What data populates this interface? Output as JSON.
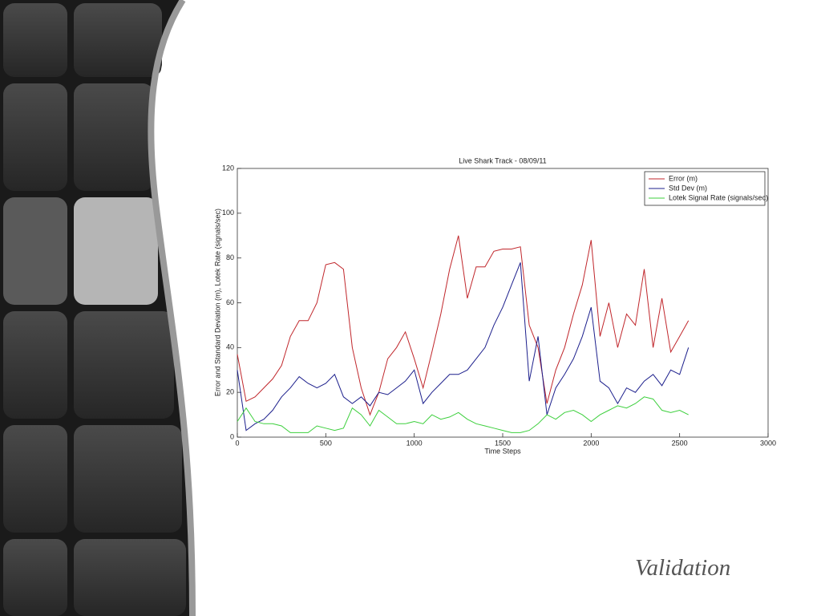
{
  "chart_data": {
    "type": "line",
    "title": "Live Shark Track - 08/09/11",
    "xlabel": "Time Steps",
    "ylabel": "Error and Standard Deviation (m), Lotek Rate (signals/sec)",
    "x": [
      0,
      50,
      100,
      150,
      200,
      250,
      300,
      350,
      400,
      450,
      500,
      550,
      600,
      650,
      700,
      750,
      800,
      850,
      900,
      950,
      1000,
      1050,
      1100,
      1150,
      1200,
      1250,
      1300,
      1350,
      1400,
      1450,
      1500,
      1550,
      1600,
      1650,
      1700,
      1750,
      1800,
      1850,
      1900,
      1950,
      2000,
      2050,
      2100,
      2150,
      2200,
      2250,
      2300,
      2350,
      2400,
      2450,
      2500,
      2550
    ],
    "series": [
      {
        "name": "Error (m)",
        "color": "#c0262b",
        "values": [
          37,
          16,
          18,
          22,
          26,
          32,
          45,
          52,
          52,
          60,
          77,
          78,
          75,
          40,
          22,
          10,
          20,
          35,
          40,
          47,
          35,
          22,
          38,
          55,
          75,
          90,
          62,
          76,
          76,
          83,
          84,
          84,
          85,
          50,
          40,
          15,
          30,
          40,
          55,
          68,
          88,
          45,
          60,
          40,
          55,
          50,
          75,
          40,
          62,
          38,
          45,
          52
        ]
      },
      {
        "name": "Std Dev (m)",
        "color": "#1c1f8c",
        "values": [
          30,
          3,
          6,
          8,
          12,
          18,
          22,
          27,
          24,
          22,
          24,
          28,
          18,
          15,
          18,
          14,
          20,
          19,
          22,
          25,
          30,
          15,
          20,
          24,
          28,
          28,
          30,
          35,
          40,
          50,
          58,
          68,
          78,
          25,
          45,
          10,
          22,
          28,
          35,
          45,
          58,
          25,
          22,
          15,
          22,
          20,
          25,
          28,
          23,
          30,
          28,
          40
        ]
      },
      {
        "name": "Lotek Signal Rate (signals/sec)",
        "color": "#3ccf3c",
        "values": [
          7,
          13,
          7,
          6,
          6,
          5,
          2,
          2,
          2,
          5,
          4,
          3,
          4,
          13,
          10,
          5,
          12,
          9,
          6,
          6,
          7,
          6,
          10,
          8,
          9,
          11,
          8,
          6,
          5,
          4,
          3,
          2,
          2,
          3,
          6,
          10,
          8,
          11,
          12,
          10,
          7,
          10,
          12,
          14,
          13,
          15,
          18,
          17,
          12,
          11,
          12,
          10
        ]
      }
    ],
    "xlim": [
      0,
      3000
    ],
    "xticks": [
      0,
      500,
      1000,
      1500,
      2000,
      2500,
      3000
    ],
    "ylim": [
      0,
      120
    ],
    "yticks": [
      0,
      20,
      40,
      60,
      80,
      100,
      120
    ],
    "legend": "top-right"
  },
  "caption": "Validation"
}
